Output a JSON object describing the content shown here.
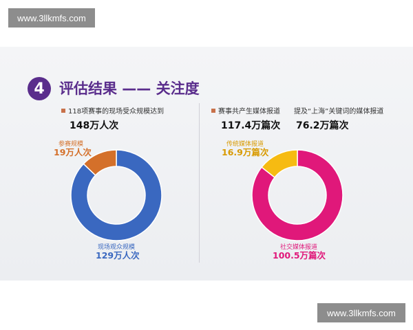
{
  "watermark": {
    "top": "www.3llkmfs.com",
    "bottom": "www.3llkmfs.com"
  },
  "section": {
    "number": "4",
    "title": "评估结果 —— 关注度"
  },
  "left": {
    "bullet_text": "118项赛事的现场受众规模达到",
    "total": "148万人次"
  },
  "right": {
    "bullet_text": "赛事共产生媒体报道",
    "total": "117.4万篇次",
    "keyword_text": "提及“上海”关键词的媒体报道",
    "keyword_total": "76.2万篇次"
  },
  "colors": {
    "accent": "#5a2d8c",
    "bullet": "#c8714a",
    "blue": "#3a68c0",
    "orange": "#d4702a",
    "magenta": "#e0187a",
    "yellow": "#f6bb12"
  },
  "chart_data": [
    {
      "type": "pie",
      "style": "donut",
      "categories": [
        "现场观众规模",
        "参赛规模"
      ],
      "values": [
        129,
        19
      ],
      "value_labels": [
        "129万人次",
        "19万人次"
      ],
      "colors": [
        "#3a68c0",
        "#d4702a"
      ]
    },
    {
      "type": "pie",
      "style": "donut",
      "categories": [
        "社交媒体报道",
        "传统媒体报道"
      ],
      "values": [
        100.5,
        16.9
      ],
      "value_labels": [
        "100.5万篇次",
        "16.9万篇次"
      ],
      "colors": [
        "#e0187a",
        "#f6bb12"
      ]
    }
  ]
}
